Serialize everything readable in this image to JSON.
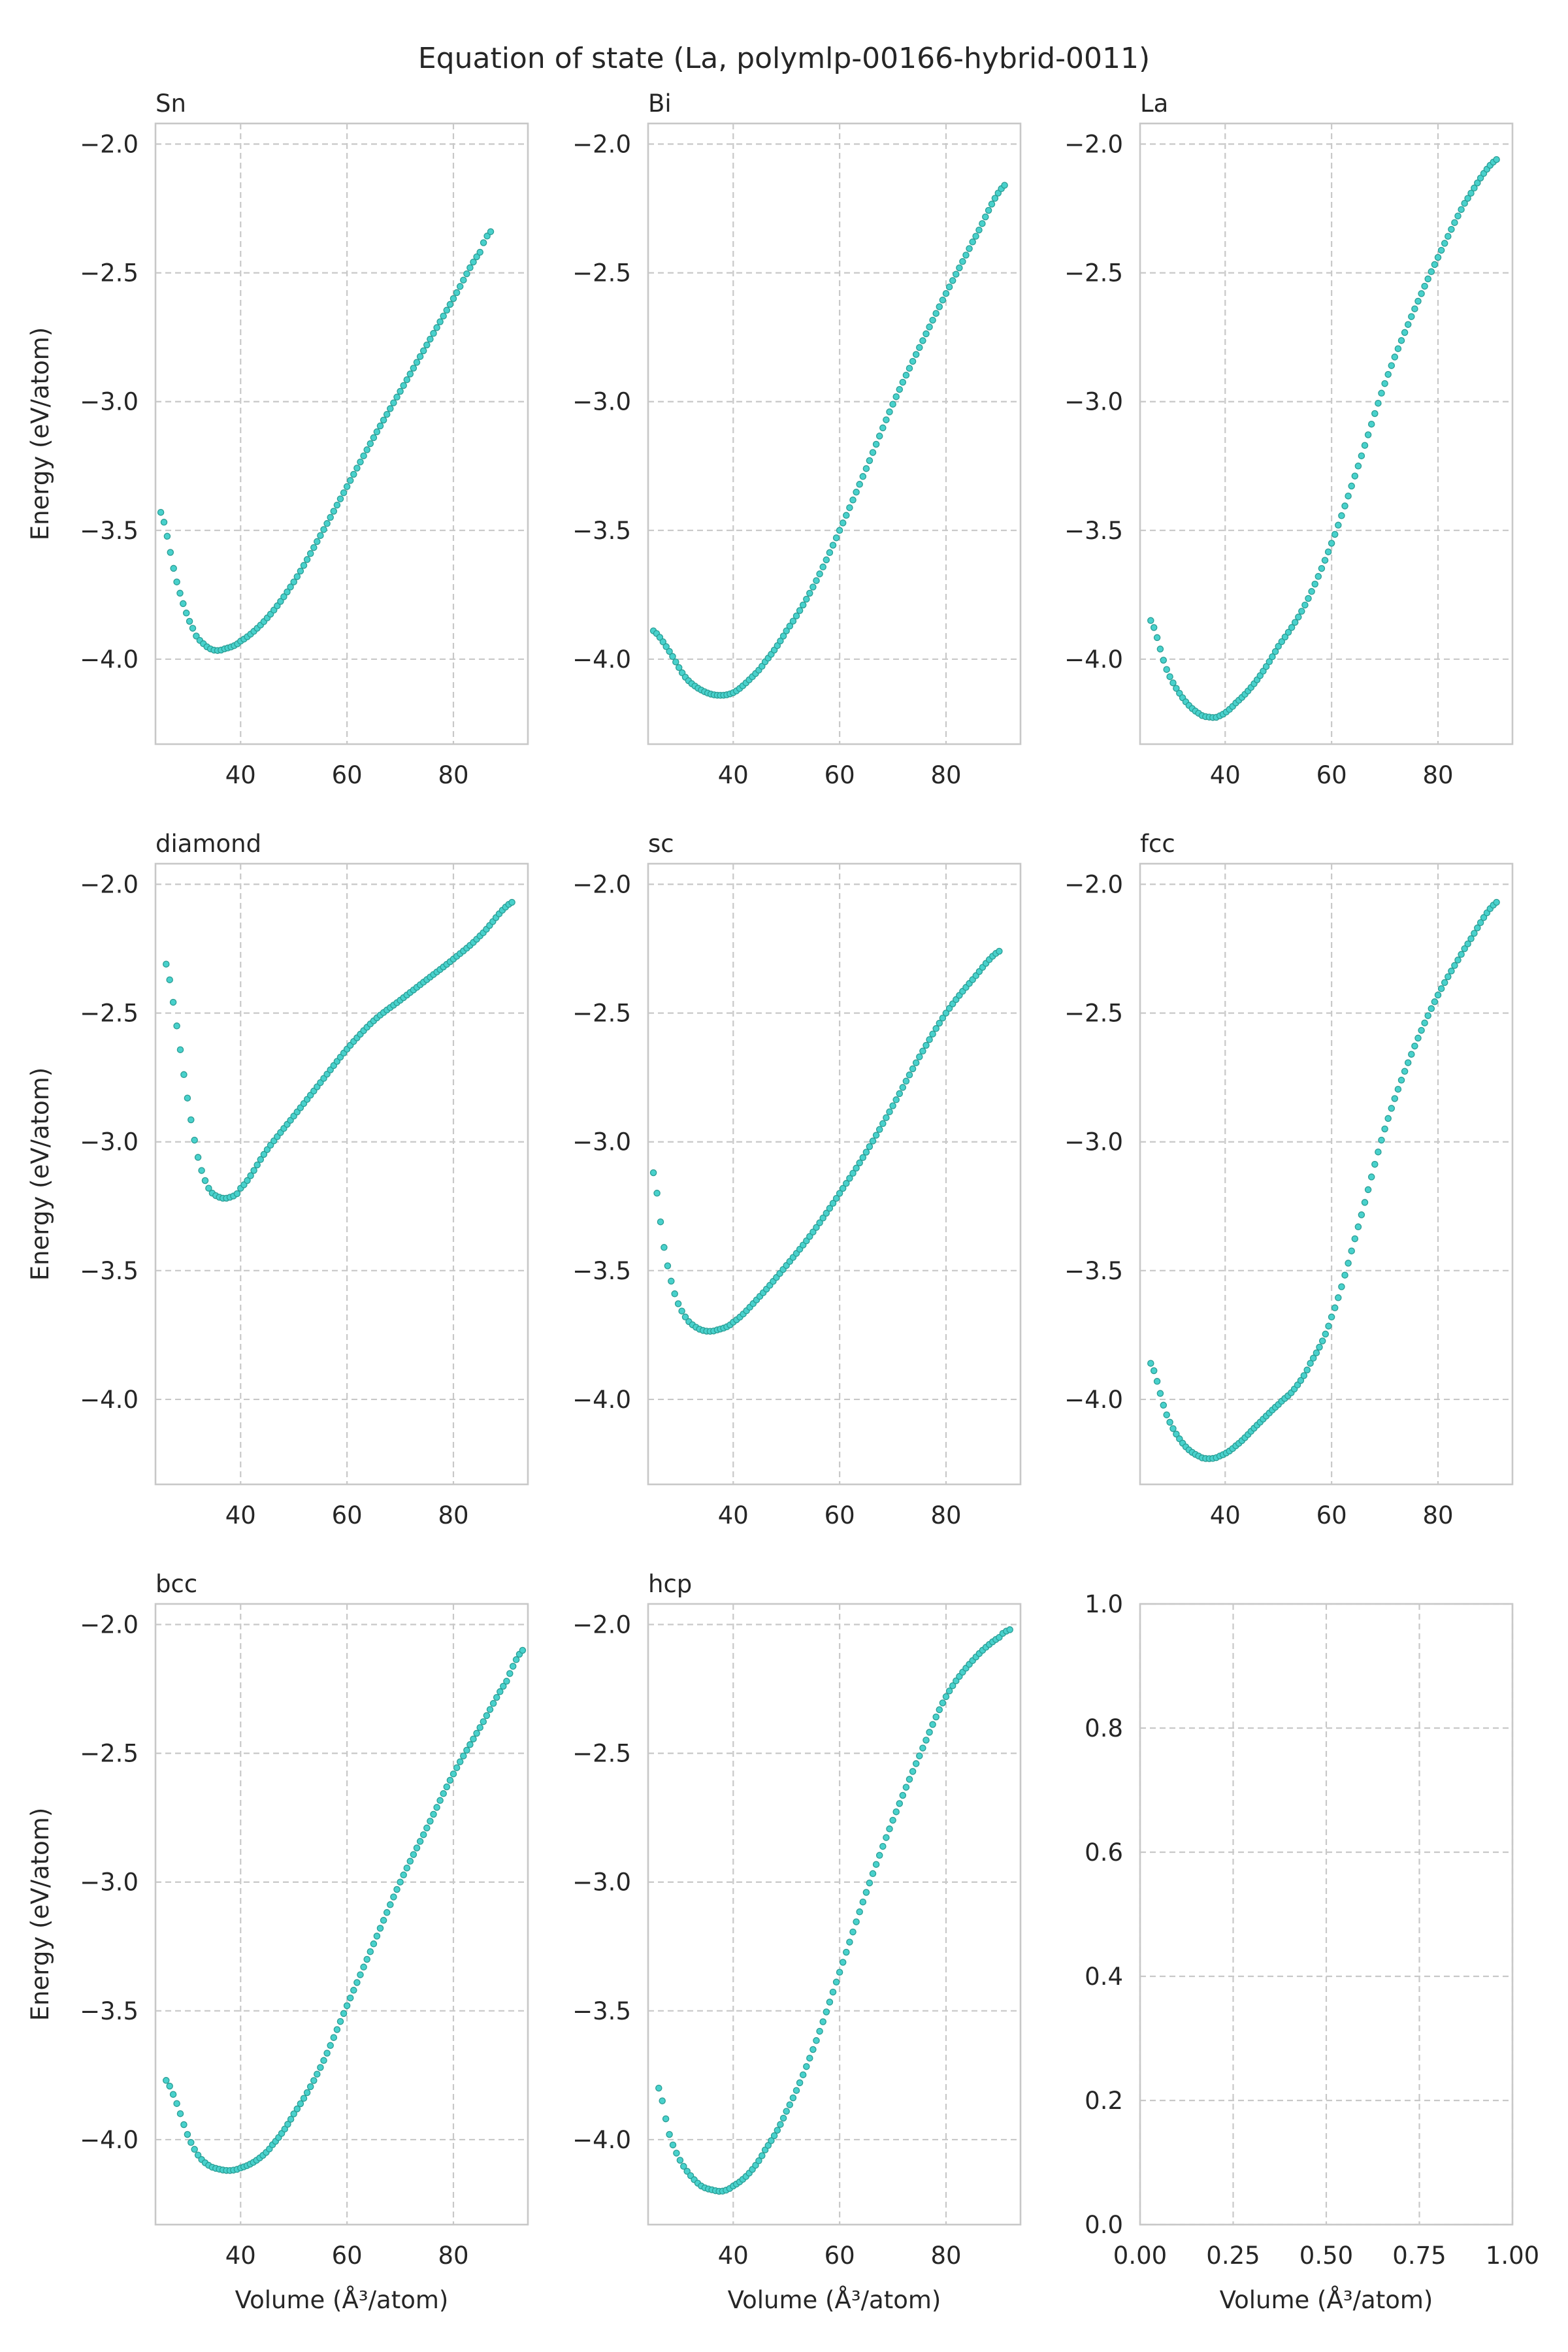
{
  "figure": {
    "title": "Equation of state (La, polymlp-00166-hybrid-0011)"
  },
  "style": {
    "marker_fill": "#48d1cc",
    "marker_edge": "#2a9d94",
    "grid_color": "#c8c8c8",
    "frame_color": "#c8c8c8",
    "text_color": "#262626"
  },
  "chart_data": [
    {
      "type": "scatter",
      "title": "Sn",
      "ylabel": "Energy (eV/atom)",
      "xlabel": "",
      "xlim": [
        24,
        94
      ],
      "ylim": [
        -4.33,
        -1.92
      ],
      "xticks": [
        40,
        60,
        80
      ],
      "yticks": [
        -2.0,
        -2.5,
        -3.0,
        -3.5,
        -4.0
      ],
      "grid": true,
      "series": [
        {
          "x": [
            25,
            28,
            31,
            33,
            35,
            37,
            40,
            45,
            50,
            55,
            60,
            65,
            70,
            75,
            80,
            85,
            87
          ],
          "y": [
            -3.43,
            -3.7,
            -3.88,
            -3.94,
            -3.965,
            -3.96,
            -3.93,
            -3.84,
            -3.7,
            -3.52,
            -3.33,
            -3.14,
            -2.96,
            -2.78,
            -2.6,
            -2.42,
            -2.34
          ]
        }
      ]
    },
    {
      "type": "scatter",
      "title": "Bi",
      "ylabel": "",
      "xlabel": "",
      "xlim": [
        24,
        94
      ],
      "ylim": [
        -4.33,
        -1.92
      ],
      "xticks": [
        40,
        60,
        80
      ],
      "yticks": [
        -2.0,
        -2.5,
        -3.0,
        -3.5,
        -4.0
      ],
      "grid": true,
      "series": [
        {
          "x": [
            25,
            28,
            31,
            34,
            37,
            40,
            43,
            46,
            50,
            55,
            60,
            65,
            70,
            75,
            80,
            85,
            91
          ],
          "y": [
            -3.89,
            -3.97,
            -4.07,
            -4.12,
            -4.14,
            -4.13,
            -4.08,
            -4.01,
            -3.89,
            -3.72,
            -3.5,
            -3.26,
            -3.01,
            -2.79,
            -2.58,
            -2.38,
            -2.16
          ]
        }
      ]
    },
    {
      "type": "scatter",
      "title": "La",
      "ylabel": "",
      "xlabel": "",
      "xlim": [
        24,
        94
      ],
      "ylim": [
        -4.33,
        -1.92
      ],
      "xticks": [
        40,
        60,
        80
      ],
      "yticks": [
        -2.0,
        -2.5,
        -3.0,
        -3.5,
        -4.0
      ],
      "grid": true,
      "series": [
        {
          "x": [
            26,
            29,
            32,
            35,
            37,
            39,
            42,
            46,
            50,
            55,
            60,
            65,
            70,
            75,
            80,
            85,
            91
          ],
          "y": [
            -3.85,
            -4.04,
            -4.15,
            -4.21,
            -4.225,
            -4.22,
            -4.17,
            -4.08,
            -3.95,
            -3.79,
            -3.55,
            -3.25,
            -2.93,
            -2.67,
            -2.44,
            -2.23,
            -2.06
          ]
        }
      ]
    },
    {
      "type": "scatter",
      "title": "diamond",
      "ylabel": "Energy (eV/atom)",
      "xlabel": "",
      "xlim": [
        24,
        94
      ],
      "ylim": [
        -4.33,
        -1.92
      ],
      "xticks": [
        40,
        60,
        80
      ],
      "yticks": [
        -2.0,
        -2.5,
        -3.0,
        -3.5,
        -4.0
      ],
      "grid": true,
      "series": [
        {
          "x": [
            26,
            28,
            30,
            32,
            34,
            36,
            38,
            40,
            45,
            50,
            55,
            60,
            65,
            70,
            75,
            80,
            85,
            91
          ],
          "y": [
            -2.31,
            -2.55,
            -2.83,
            -3.06,
            -3.18,
            -3.215,
            -3.215,
            -3.18,
            -3.03,
            -2.9,
            -2.77,
            -2.64,
            -2.53,
            -2.45,
            -2.37,
            -2.29,
            -2.2,
            -2.07
          ]
        }
      ]
    },
    {
      "type": "scatter",
      "title": "sc",
      "ylabel": "",
      "xlabel": "",
      "xlim": [
        24,
        94
      ],
      "ylim": [
        -4.33,
        -1.92
      ],
      "xticks": [
        40,
        60,
        80
      ],
      "yticks": [
        -2.0,
        -2.5,
        -3.0,
        -3.5,
        -4.0
      ],
      "grid": true,
      "series": [
        {
          "x": [
            25,
            27,
            29,
            31,
            33,
            35,
            37,
            40,
            45,
            50,
            55,
            60,
            65,
            70,
            75,
            80,
            85,
            90
          ],
          "y": [
            -3.12,
            -3.41,
            -3.59,
            -3.68,
            -3.72,
            -3.735,
            -3.73,
            -3.7,
            -3.6,
            -3.48,
            -3.35,
            -3.2,
            -3.04,
            -2.86,
            -2.67,
            -2.5,
            -2.37,
            -2.26
          ]
        }
      ]
    },
    {
      "type": "scatter",
      "title": "fcc",
      "ylabel": "",
      "xlabel": "",
      "xlim": [
        24,
        94
      ],
      "ylim": [
        -4.33,
        -1.92
      ],
      "xticks": [
        40,
        60,
        80
      ],
      "yticks": [
        -2.0,
        -2.5,
        -3.0,
        -3.5,
        -4.0
      ],
      "grid": true,
      "series": [
        {
          "x": [
            26,
            29,
            32,
            35,
            37,
            39,
            42,
            46,
            50,
            53,
            56,
            60,
            65,
            70,
            75,
            80,
            85,
            91
          ],
          "y": [
            -3.86,
            -4.06,
            -4.17,
            -4.22,
            -4.23,
            -4.22,
            -4.18,
            -4.1,
            -4.02,
            -3.96,
            -3.86,
            -3.68,
            -3.33,
            -2.95,
            -2.66,
            -2.43,
            -2.25,
            -2.07
          ]
        }
      ]
    },
    {
      "type": "scatter",
      "title": "bcc",
      "ylabel": "Energy (eV/atom)",
      "xlabel": "Volume (Å³/atom)",
      "xlim": [
        24,
        94
      ],
      "ylim": [
        -4.33,
        -1.92
      ],
      "xticks": [
        40,
        60,
        80
      ],
      "yticks": [
        -2.0,
        -2.5,
        -3.0,
        -3.5,
        -4.0
      ],
      "grid": true,
      "series": [
        {
          "x": [
            26,
            28,
            30,
            32,
            34,
            36,
            38,
            40,
            43,
            46,
            50,
            55,
            60,
            65,
            70,
            75,
            80,
            85,
            90,
            93
          ],
          "y": [
            -3.77,
            -3.86,
            -3.98,
            -4.06,
            -4.1,
            -4.115,
            -4.12,
            -4.11,
            -4.08,
            -4.02,
            -3.9,
            -3.72,
            -3.48,
            -3.24,
            -3.0,
            -2.79,
            -2.58,
            -2.4,
            -2.22,
            -2.1
          ]
        }
      ]
    },
    {
      "type": "scatter",
      "title": "hcp",
      "ylabel": "",
      "xlabel": "Volume (Å³/atom)",
      "xlim": [
        24,
        94
      ],
      "ylim": [
        -4.33,
        -1.92
      ],
      "xticks": [
        40,
        60,
        80
      ],
      "yticks": [
        -2.0,
        -2.5,
        -3.0,
        -3.5,
        -4.0
      ],
      "grid": true,
      "series": [
        {
          "x": [
            26,
            28,
            30,
            32,
            34,
            36,
            38,
            40,
            43,
            46,
            50,
            55,
            60,
            65,
            70,
            75,
            80,
            85,
            90,
            92
          ],
          "y": [
            -3.8,
            -3.98,
            -4.08,
            -4.14,
            -4.18,
            -4.195,
            -4.2,
            -4.18,
            -4.13,
            -4.04,
            -3.89,
            -3.65,
            -3.35,
            -3.04,
            -2.76,
            -2.51,
            -2.28,
            -2.14,
            -2.05,
            -2.02
          ]
        }
      ]
    },
    {
      "type": "scatter",
      "title": "",
      "ylabel": "",
      "xlabel": "Volume (Å³/atom)",
      "xlim": [
        0,
        1
      ],
      "ylim": [
        0,
        1
      ],
      "xticks": [
        0.0,
        0.25,
        0.5,
        0.75,
        1.0
      ],
      "xticklabels": [
        "0.00",
        "0.25",
        "0.50",
        "0.75",
        "1.00"
      ],
      "yticks": [
        0.0,
        0.2,
        0.4,
        0.6,
        0.8,
        1.0
      ],
      "yticklabels": [
        "0.0",
        "0.2",
        "0.4",
        "0.6",
        "0.8",
        "1.0"
      ],
      "grid": true,
      "series": []
    }
  ]
}
